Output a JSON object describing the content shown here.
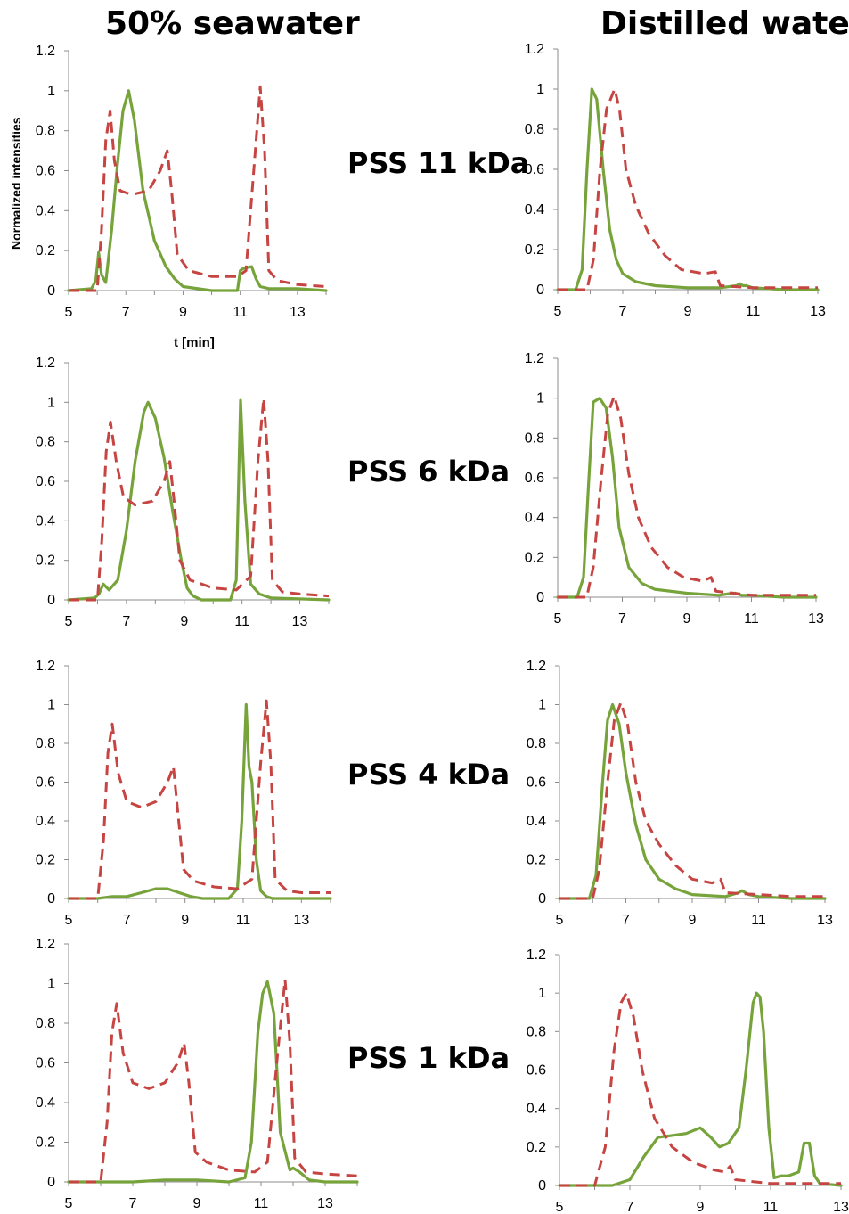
{
  "columns": [
    "50% seawater",
    "Distilled water"
  ],
  "row_labels": [
    "PSS 11 kDa",
    "PSS 6 kDa",
    "PSS 4 kDa",
    "PSS 1 kDa"
  ],
  "ylabel": "Normalized intensities",
  "xlabel": "t [min]",
  "colors": {
    "green": "#77a33b",
    "red": "#c64441"
  },
  "chart_data": [
    {
      "type": "line",
      "panel": "50% seawater / PSS 11 kDa",
      "xlim": [
        5,
        14
      ],
      "ylim": [
        0,
        1.2
      ],
      "xticks": [
        5,
        7,
        9,
        11,
        13
      ],
      "yticks": [
        0,
        0.2,
        0.4,
        0.6,
        0.8,
        1,
        1.2
      ],
      "series": [
        {
          "style": "solid",
          "color": "#77a33b",
          "x": [
            5.0,
            5.8,
            5.95,
            6.05,
            6.15,
            6.3,
            6.5,
            6.7,
            6.9,
            7.1,
            7.3,
            7.6,
            8.0,
            8.4,
            8.7,
            9.0,
            10.0,
            10.9,
            11.0,
            11.1,
            11.4,
            11.55,
            11.7,
            12.0,
            13.0,
            14.0
          ],
          "y": [
            0,
            0.01,
            0.05,
            0.19,
            0.08,
            0.04,
            0.3,
            0.62,
            0.9,
            1.0,
            0.85,
            0.5,
            0.25,
            0.12,
            0.06,
            0.02,
            0.0,
            0.0,
            0.1,
            0.11,
            0.12,
            0.06,
            0.02,
            0.01,
            0.01,
            0.0
          ]
        },
        {
          "style": "dashed",
          "color": "#c64441",
          "x": [
            5.0,
            6.0,
            6.15,
            6.3,
            6.45,
            6.6,
            6.8,
            7.2,
            7.8,
            8.2,
            8.45,
            8.6,
            8.8,
            9.2,
            10.0,
            10.9,
            11.2,
            11.5,
            11.7,
            11.85,
            12.0,
            12.3,
            13.0,
            14.0
          ],
          "y": [
            0,
            0.0,
            0.3,
            0.75,
            0.9,
            0.65,
            0.5,
            0.48,
            0.5,
            0.6,
            0.7,
            0.5,
            0.18,
            0.1,
            0.07,
            0.07,
            0.1,
            0.65,
            1.02,
            0.7,
            0.1,
            0.05,
            0.03,
            0.02
          ]
        }
      ]
    },
    {
      "type": "line",
      "panel": "Distilled water / PSS 11 kDa",
      "xlim": [
        5,
        13
      ],
      "ylim": [
        0,
        1.2
      ],
      "xticks": [
        5,
        7,
        9,
        11,
        13
      ],
      "yticks": [
        0,
        0.2,
        0.4,
        0.6,
        0.8,
        1,
        1.2
      ],
      "series": [
        {
          "style": "solid",
          "color": "#77a33b",
          "x": [
            5.0,
            5.55,
            5.75,
            5.9,
            6.05,
            6.2,
            6.4,
            6.6,
            6.8,
            7.0,
            7.4,
            8.0,
            9.0,
            10.0,
            10.5,
            10.6,
            10.7,
            10.8,
            11.0,
            12.0,
            13.0
          ],
          "y": [
            0,
            0.0,
            0.1,
            0.6,
            1.0,
            0.95,
            0.6,
            0.3,
            0.15,
            0.08,
            0.04,
            0.02,
            0.01,
            0.01,
            0.02,
            0.03,
            0.02,
            0.02,
            0.01,
            0.0,
            0.0
          ]
        },
        {
          "style": "dashed",
          "color": "#c64441",
          "x": [
            5.0,
            5.9,
            6.1,
            6.3,
            6.5,
            6.75,
            6.9,
            7.1,
            7.4,
            7.8,
            8.3,
            8.8,
            9.5,
            9.85,
            10.0,
            11.0,
            12.0,
            13.0
          ],
          "y": [
            0,
            0.0,
            0.15,
            0.6,
            0.9,
            1.0,
            0.9,
            0.6,
            0.42,
            0.28,
            0.17,
            0.1,
            0.08,
            0.09,
            0.02,
            0.01,
            0.01,
            0.01
          ]
        }
      ]
    },
    {
      "type": "line",
      "panel": "50% seawater / PSS 6 kDa",
      "xlim": [
        5,
        14
      ],
      "ylim": [
        0,
        1.2
      ],
      "xticks": [
        5,
        7,
        9,
        11,
        13
      ],
      "yticks": [
        0,
        0.2,
        0.4,
        0.6,
        0.8,
        1,
        1.2
      ],
      "series": [
        {
          "style": "solid",
          "color": "#77a33b",
          "x": [
            5.0,
            5.9,
            6.05,
            6.2,
            6.4,
            6.7,
            7.0,
            7.3,
            7.6,
            7.75,
            8.0,
            8.3,
            8.6,
            8.9,
            9.1,
            9.3,
            9.6,
            10.6,
            10.8,
            10.95,
            11.1,
            11.3,
            11.6,
            12.0,
            14.0
          ],
          "y": [
            0,
            0.01,
            0.03,
            0.08,
            0.05,
            0.1,
            0.35,
            0.7,
            0.95,
            1.0,
            0.92,
            0.72,
            0.45,
            0.2,
            0.06,
            0.02,
            0.0,
            0.0,
            0.1,
            1.01,
            0.5,
            0.08,
            0.03,
            0.01,
            0.0
          ]
        },
        {
          "style": "dashed",
          "color": "#c64441",
          "x": [
            5.0,
            6.0,
            6.15,
            6.3,
            6.45,
            6.65,
            6.9,
            7.3,
            7.9,
            8.3,
            8.5,
            8.65,
            8.85,
            9.2,
            10.0,
            10.8,
            11.3,
            11.55,
            11.75,
            11.9,
            12.05,
            12.4,
            13.0,
            14.0
          ],
          "y": [
            0,
            0.0,
            0.3,
            0.75,
            0.9,
            0.7,
            0.52,
            0.48,
            0.5,
            0.6,
            0.7,
            0.5,
            0.2,
            0.1,
            0.06,
            0.05,
            0.12,
            0.7,
            1.02,
            0.7,
            0.1,
            0.04,
            0.03,
            0.02
          ]
        }
      ]
    },
    {
      "type": "line",
      "panel": "Distilled water / PSS 6 kDa",
      "xlim": [
        5,
        13
      ],
      "ylim": [
        0,
        1.2
      ],
      "xticks": [
        5,
        7,
        9,
        11,
        13
      ],
      "yticks": [
        0,
        0.2,
        0.4,
        0.6,
        0.8,
        1,
        1.2
      ],
      "series": [
        {
          "style": "solid",
          "color": "#77a33b",
          "x": [
            5.0,
            5.6,
            5.8,
            5.95,
            6.1,
            6.3,
            6.5,
            6.7,
            6.9,
            7.2,
            7.6,
            8.0,
            9.0,
            10.0,
            10.4,
            10.5,
            10.7,
            11.0,
            12.0,
            13.0
          ],
          "y": [
            0,
            0.0,
            0.1,
            0.55,
            0.98,
            1.0,
            0.95,
            0.7,
            0.35,
            0.15,
            0.07,
            0.04,
            0.02,
            0.01,
            0.02,
            0.02,
            0.01,
            0.01,
            0.0,
            0.0
          ]
        },
        {
          "style": "dashed",
          "color": "#c64441",
          "x": [
            5.0,
            5.9,
            6.1,
            6.35,
            6.55,
            6.75,
            6.95,
            7.2,
            7.5,
            7.9,
            8.4,
            8.9,
            9.5,
            9.75,
            9.9,
            11.0,
            12.0,
            13.0
          ],
          "y": [
            0,
            0.0,
            0.15,
            0.6,
            0.92,
            1.01,
            0.9,
            0.62,
            0.4,
            0.25,
            0.15,
            0.1,
            0.08,
            0.1,
            0.03,
            0.01,
            0.01,
            0.01
          ]
        }
      ]
    },
    {
      "type": "line",
      "panel": "50% seawater / PSS 4 kDa",
      "xlim": [
        5,
        14
      ],
      "ylim": [
        0,
        1.2
      ],
      "xticks": [
        5,
        7,
        9,
        11,
        13
      ],
      "yticks": [
        0,
        0.2,
        0.4,
        0.6,
        0.8,
        1,
        1.2
      ],
      "series": [
        {
          "style": "solid",
          "color": "#77a33b",
          "x": [
            5.0,
            6.0,
            6.5,
            7.0,
            7.5,
            8.0,
            8.4,
            8.8,
            9.2,
            9.6,
            10.5,
            10.8,
            10.95,
            11.1,
            11.2,
            11.3,
            11.45,
            11.6,
            11.8,
            12.0,
            14.0
          ],
          "y": [
            0,
            0.0,
            0.01,
            0.01,
            0.03,
            0.05,
            0.05,
            0.03,
            0.01,
            0.0,
            0.0,
            0.05,
            0.4,
            1.0,
            0.68,
            0.6,
            0.2,
            0.04,
            0.01,
            0.0,
            0.0
          ]
        },
        {
          "style": "dashed",
          "color": "#c64441",
          "x": [
            5.0,
            6.0,
            6.2,
            6.35,
            6.5,
            6.7,
            7.0,
            7.5,
            8.0,
            8.4,
            8.6,
            8.75,
            8.95,
            9.3,
            10.0,
            10.8,
            11.3,
            11.6,
            11.8,
            11.95,
            12.1,
            12.5,
            13.0,
            14.0
          ],
          "y": [
            0,
            0.0,
            0.3,
            0.75,
            0.9,
            0.65,
            0.5,
            0.47,
            0.5,
            0.6,
            0.68,
            0.45,
            0.15,
            0.09,
            0.06,
            0.05,
            0.1,
            0.7,
            1.02,
            0.7,
            0.1,
            0.04,
            0.03,
            0.03
          ]
        }
      ]
    },
    {
      "type": "line",
      "panel": "Distilled water / PSS 4 kDa",
      "xlim": [
        5,
        13
      ],
      "ylim": [
        0,
        1.2
      ],
      "xticks": [
        5,
        7,
        9,
        11,
        13
      ],
      "yticks": [
        0,
        0.2,
        0.4,
        0.6,
        0.8,
        1,
        1.2
      ],
      "series": [
        {
          "style": "solid",
          "color": "#77a33b",
          "x": [
            5.0,
            5.9,
            6.1,
            6.3,
            6.45,
            6.6,
            6.8,
            7.0,
            7.3,
            7.6,
            8.0,
            8.5,
            9.0,
            10.0,
            10.4,
            10.5,
            10.7,
            11.0,
            12.0,
            13.0
          ],
          "y": [
            0,
            0.0,
            0.12,
            0.6,
            0.92,
            1.0,
            0.9,
            0.65,
            0.38,
            0.2,
            0.1,
            0.05,
            0.02,
            0.01,
            0.03,
            0.04,
            0.02,
            0.01,
            0.0,
            0.0
          ]
        },
        {
          "style": "dashed",
          "color": "#c64441",
          "x": [
            5.0,
            6.0,
            6.2,
            6.45,
            6.65,
            6.85,
            7.05,
            7.3,
            7.6,
            8.0,
            8.5,
            9.0,
            9.6,
            9.85,
            10.0,
            11.0,
            12.0,
            13.0
          ],
          "y": [
            0,
            0.0,
            0.15,
            0.6,
            0.92,
            1.01,
            0.9,
            0.6,
            0.4,
            0.28,
            0.17,
            0.1,
            0.08,
            0.1,
            0.03,
            0.02,
            0.01,
            0.01
          ]
        }
      ]
    },
    {
      "type": "line",
      "panel": "50% seawater / PSS 1 kDa",
      "xlim": [
        5,
        14
      ],
      "ylim": [
        0,
        1.2
      ],
      "xticks": [
        5,
        7,
        9,
        11,
        13
      ],
      "yticks": [
        0,
        0.2,
        0.4,
        0.6,
        0.8,
        1,
        1.2
      ],
      "series": [
        {
          "style": "solid",
          "color": "#77a33b",
          "x": [
            5.0,
            7.0,
            8.0,
            9.0,
            10.0,
            10.5,
            10.7,
            10.9,
            11.05,
            11.2,
            11.4,
            11.6,
            11.9,
            12.0,
            12.2,
            12.5,
            13.0,
            14.0
          ],
          "y": [
            0,
            0.0,
            0.01,
            0.01,
            0.0,
            0.02,
            0.2,
            0.75,
            0.95,
            1.01,
            0.85,
            0.25,
            0.06,
            0.07,
            0.05,
            0.01,
            0.0,
            0.0
          ]
        },
        {
          "style": "dashed",
          "color": "#c64441",
          "x": [
            5.0,
            6.0,
            6.2,
            6.35,
            6.5,
            6.7,
            7.0,
            7.5,
            8.0,
            8.4,
            8.6,
            8.75,
            8.95,
            9.3,
            10.0,
            10.8,
            11.2,
            11.55,
            11.75,
            11.9,
            12.05,
            12.4,
            13.0,
            14.0
          ],
          "y": [
            0,
            0.0,
            0.3,
            0.75,
            0.9,
            0.65,
            0.5,
            0.47,
            0.5,
            0.6,
            0.7,
            0.5,
            0.15,
            0.1,
            0.06,
            0.05,
            0.1,
            0.7,
            1.02,
            0.7,
            0.12,
            0.05,
            0.04,
            0.03
          ]
        }
      ]
    },
    {
      "type": "line",
      "panel": "Distilled water / PSS 1 kDa",
      "xlim": [
        5,
        13
      ],
      "ylim": [
        0,
        1.2
      ],
      "xticks": [
        5,
        7,
        9,
        11,
        13
      ],
      "yticks": [
        0,
        0.2,
        0.4,
        0.6,
        0.8,
        1,
        1.2
      ],
      "series": [
        {
          "style": "solid",
          "color": "#77a33b",
          "x": [
            5.0,
            6.5,
            7.0,
            7.4,
            7.8,
            8.2,
            8.6,
            9.0,
            9.3,
            9.55,
            9.8,
            10.1,
            10.3,
            10.5,
            10.6,
            10.7,
            10.8,
            10.95,
            11.1,
            11.3,
            11.5,
            11.8,
            11.95,
            12.1,
            12.25,
            12.4,
            13.0
          ],
          "y": [
            0,
            0.0,
            0.03,
            0.15,
            0.25,
            0.26,
            0.27,
            0.3,
            0.25,
            0.2,
            0.22,
            0.3,
            0.6,
            0.95,
            1.0,
            0.98,
            0.8,
            0.3,
            0.04,
            0.05,
            0.05,
            0.07,
            0.22,
            0.22,
            0.05,
            0.01,
            0.0
          ]
        },
        {
          "style": "dashed",
          "color": "#c64441",
          "x": [
            5.0,
            6.0,
            6.3,
            6.55,
            6.75,
            6.9,
            7.1,
            7.35,
            7.7,
            8.2,
            8.8,
            9.4,
            9.7,
            9.85,
            10.0,
            11.0,
            12.0,
            13.0
          ],
          "y": [
            0,
            0.0,
            0.2,
            0.7,
            0.95,
            1.0,
            0.88,
            0.6,
            0.35,
            0.2,
            0.12,
            0.08,
            0.07,
            0.1,
            0.03,
            0.01,
            0.01,
            0.01
          ]
        }
      ]
    }
  ]
}
